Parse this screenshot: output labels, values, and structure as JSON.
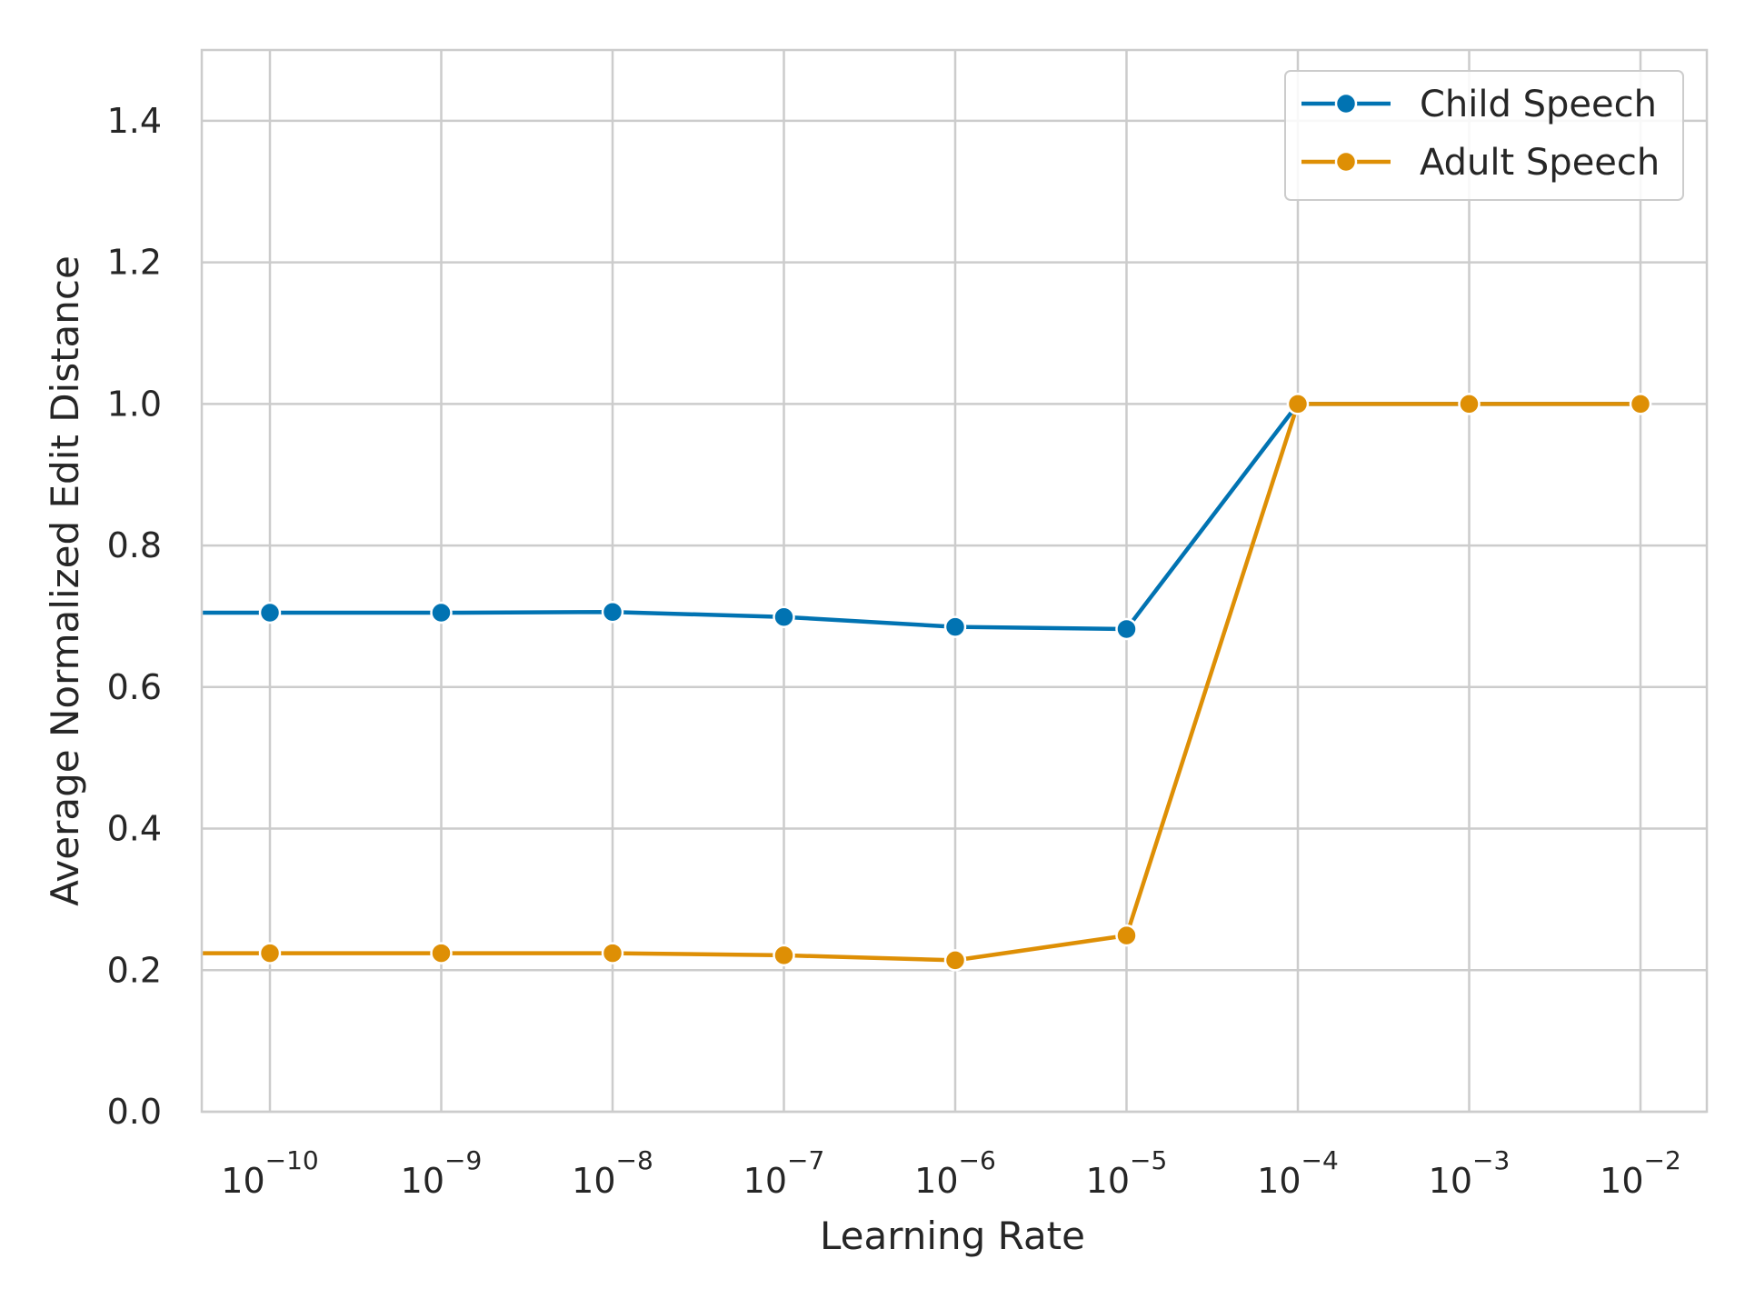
{
  "chart_data": {
    "type": "line",
    "title": "",
    "xlabel": "Learning Rate",
    "ylabel": "Average Normalized Edit Distance",
    "x_scale": "log",
    "x": [
      "10^-10",
      "10^-9",
      "10^-8",
      "10^-7",
      "10^-6",
      "10^-5",
      "10^-4",
      "10^-3",
      "10^-2"
    ],
    "x_ticks": [
      {
        "base": "10",
        "exp": "−10"
      },
      {
        "base": "10",
        "exp": "−9"
      },
      {
        "base": "10",
        "exp": "−8"
      },
      {
        "base": "10",
        "exp": "−7"
      },
      {
        "base": "10",
        "exp": "−6"
      },
      {
        "base": "10",
        "exp": "−5"
      },
      {
        "base": "10",
        "exp": "−4"
      },
      {
        "base": "10",
        "exp": "−3"
      },
      {
        "base": "10",
        "exp": "−2"
      }
    ],
    "y_ticks": [
      "0.0",
      "0.2",
      "0.4",
      "0.6",
      "0.8",
      "1.0",
      "1.2",
      "1.4"
    ],
    "ylim": [
      0,
      1.5
    ],
    "grid": true,
    "legend_position": "top-right",
    "series": [
      {
        "name": "Child Speech",
        "color": "#0173b2",
        "marker": "circle",
        "values": [
          0.705,
          0.705,
          0.706,
          0.699,
          0.685,
          0.682,
          1.0,
          1.0,
          1.0
        ]
      },
      {
        "name": "Adult Speech",
        "color": "#de8f05",
        "marker": "circle",
        "values": [
          0.224,
          0.224,
          0.224,
          0.221,
          0.214,
          0.249,
          1.0,
          1.0,
          1.0
        ]
      }
    ]
  }
}
